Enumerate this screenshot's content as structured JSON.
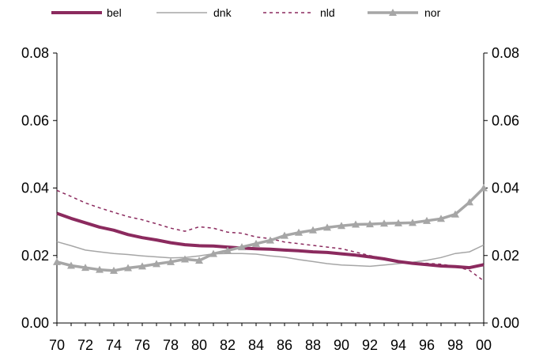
{
  "chart_data": {
    "type": "line",
    "title": "",
    "xlabel": "",
    "ylabel": "",
    "xlim": [
      1970,
      2000
    ],
    "ylim": [
      0,
      0.08
    ],
    "x_ticks": [
      1970,
      1972,
      1974,
      1976,
      1978,
      1980,
      1982,
      1984,
      1986,
      1988,
      1990,
      1992,
      1994,
      1996,
      1998,
      2000
    ],
    "x_tick_labels": [
      "70",
      "72",
      "74",
      "76",
      "78",
      "80",
      "82",
      "84",
      "86",
      "88",
      "90",
      "92",
      "94",
      "96",
      "98",
      "00"
    ],
    "y_ticks": [
      0,
      0.02,
      0.04,
      0.06,
      0.08
    ],
    "y_tick_labels": [
      "0.00",
      "0.02",
      "0.04",
      "0.06",
      "0.08"
    ],
    "grid": false,
    "legend_position": "top",
    "x": [
      1970,
      1971,
      1972,
      1973,
      1974,
      1975,
      1976,
      1977,
      1978,
      1979,
      1980,
      1981,
      1982,
      1983,
      1984,
      1985,
      1986,
      1987,
      1988,
      1989,
      1990,
      1991,
      1992,
      1993,
      1994,
      1995,
      1996,
      1997,
      1998,
      1999,
      2000
    ],
    "series": [
      {
        "name": "bel",
        "color": "#8b2a5e",
        "style": "solid-thick",
        "values": [
          0.0325,
          0.031,
          0.0297,
          0.0284,
          0.0275,
          0.0262,
          0.0253,
          0.0246,
          0.0238,
          0.0232,
          0.0229,
          0.0228,
          0.0225,
          0.0222,
          0.022,
          0.0219,
          0.0216,
          0.0214,
          0.0211,
          0.0209,
          0.0205,
          0.0201,
          0.0196,
          0.019,
          0.0182,
          0.0177,
          0.0173,
          0.0169,
          0.0167,
          0.0164,
          0.0173
        ]
      },
      {
        "name": "dnk",
        "color": "#a6a6a6",
        "style": "solid-thin",
        "values": [
          0.0241,
          0.0229,
          0.0216,
          0.0211,
          0.0206,
          0.0203,
          0.0199,
          0.0196,
          0.0193,
          0.0194,
          0.0199,
          0.0205,
          0.0206,
          0.0206,
          0.0204,
          0.0199,
          0.0195,
          0.0188,
          0.0182,
          0.0176,
          0.0172,
          0.017,
          0.0168,
          0.0172,
          0.0176,
          0.018,
          0.0186,
          0.0194,
          0.0206,
          0.0211,
          0.0231
        ]
      },
      {
        "name": "nld",
        "color": "#8b2a5e",
        "style": "dashed",
        "values": [
          0.0393,
          0.0375,
          0.0356,
          0.0341,
          0.0328,
          0.0315,
          0.0306,
          0.0294,
          0.0281,
          0.0272,
          0.0285,
          0.0281,
          0.0269,
          0.0266,
          0.0255,
          0.025,
          0.024,
          0.0235,
          0.023,
          0.0225,
          0.022,
          0.021,
          0.02,
          0.0191,
          0.0183,
          0.0179,
          0.0177,
          0.0174,
          0.0168,
          0.0156,
          0.0125
        ]
      },
      {
        "name": "nor",
        "color": "#a6a6a6",
        "style": "solid-thick-markers",
        "values": [
          0.0181,
          0.017,
          0.0164,
          0.0158,
          0.0155,
          0.0163,
          0.0168,
          0.0175,
          0.0181,
          0.0189,
          0.0185,
          0.0205,
          0.0215,
          0.0225,
          0.0235,
          0.0245,
          0.0259,
          0.0268,
          0.0275,
          0.0283,
          0.0288,
          0.0292,
          0.0293,
          0.0295,
          0.0296,
          0.0297,
          0.0303,
          0.0309,
          0.0322,
          0.0358,
          0.04
        ]
      }
    ]
  }
}
